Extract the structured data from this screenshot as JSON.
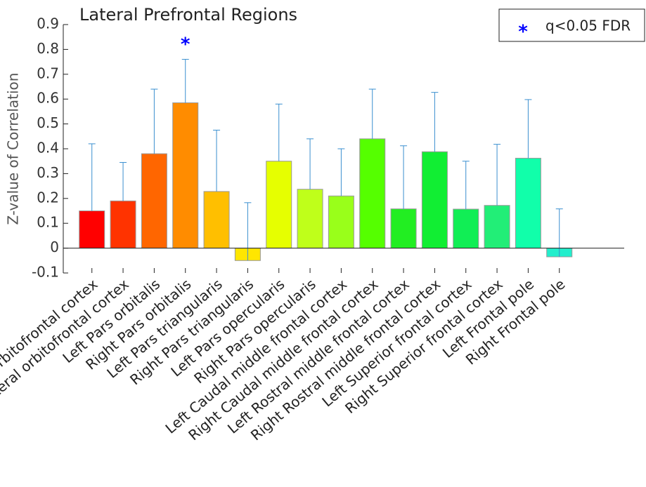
{
  "chart_data": {
    "type": "bar",
    "title": "Lateral Prefrontal Regions",
    "y_label": "Z-value of Correlation",
    "categories": [
      "Left Lateral orbitofrontal cortex",
      "Right Lateral orbitofrontal cortex",
      "Left Pars orbitalis",
      "Right Pars orbitalis",
      "Left Pars triangularis",
      "Right Pars triangularis",
      "Left Pars opercularis",
      "Right Pars opercularis",
      "Left Caudal middle frontal cortex",
      "Right Caudal middle frontal cortex",
      "Left Rostral middle frontal cortex",
      "Right Rostral middle frontal cortex",
      "Left Superior frontal cortex",
      "Right Superior frontal cortex",
      "Left Frontal pole",
      "Right Frontal pole"
    ],
    "values": [
      0.15,
      0.19,
      0.38,
      0.585,
      0.228,
      -0.05,
      0.35,
      0.237,
      0.21,
      0.44,
      0.158,
      0.388,
      0.157,
      0.172,
      0.362,
      -0.035
    ],
    "errors": [
      0.27,
      0.155,
      0.26,
      0.175,
      0.247,
      0.233,
      0.23,
      0.203,
      0.19,
      0.2,
      0.254,
      0.239,
      0.193,
      0.246,
      0.236,
      0.193
    ],
    "colors": [
      "#ff0000",
      "#ff3300",
      "#ff6600",
      "#ff8c00",
      "#ffbf00",
      "#ffe600",
      "#e6ff00",
      "#bfff1a",
      "#99ff1a",
      "#55ff00",
      "#22ee22",
      "#11ee33",
      "#11ee55",
      "#22ee77",
      "#11ffaa",
      "#22eecc"
    ],
    "error_color": "#3a8fd0",
    "ylim": [
      -0.1,
      0.9
    ],
    "yticks": [
      -0.1,
      0,
      0.1,
      0.2,
      0.3,
      0.4,
      0.5,
      0.6,
      0.7,
      0.8,
      0.9
    ],
    "significance": {
      "index": 3,
      "y": 0.835,
      "color": "#0000ff",
      "label": "q<0.05 FDR"
    }
  }
}
